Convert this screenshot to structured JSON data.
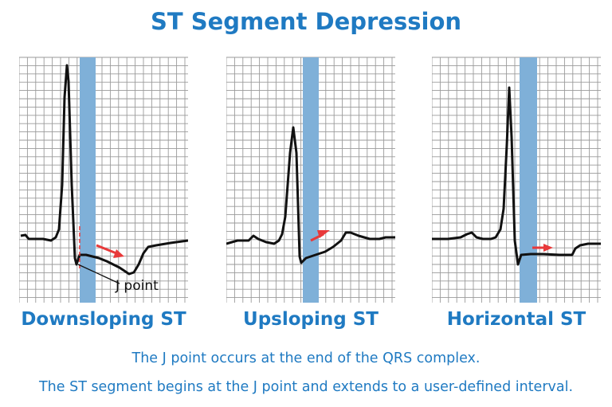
{
  "title": "ST Segment Depression",
  "panels": [
    {
      "label": "Downsloping ST",
      "annotation": "J point"
    },
    {
      "label": "Upsloping ST"
    },
    {
      "label": "Horizontal ST"
    }
  ],
  "captions": [
    "The J point occurs at the end of the QRS complex.",
    "The ST segment begins at the J point and extends to a user-defined interval."
  ],
  "colors": {
    "accent": "#1f7ac2",
    "highlight_band": "#7fb0d8",
    "arrow": "#e8393a",
    "trace": "#111111",
    "grid": "#9a9a9a"
  }
}
